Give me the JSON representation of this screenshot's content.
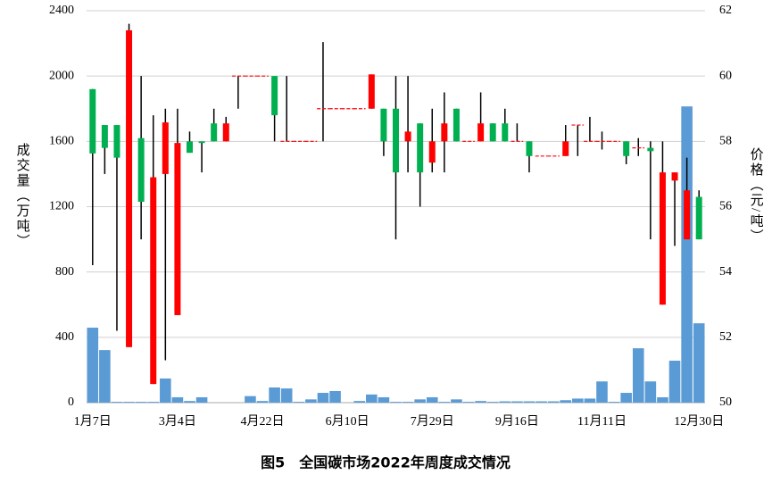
{
  "chart_data": {
    "type": "volume_candlestick",
    "title": "图5　全国碳市场2022年周度成交情况",
    "y_label": "成交量（万吨）",
    "y2_label": "价格（元/吨）",
    "categories": [
      "1月7日",
      null,
      null,
      null,
      null,
      null,
      null,
      "3月4日",
      null,
      null,
      null,
      null,
      null,
      null,
      "4月22日",
      null,
      null,
      null,
      null,
      null,
      null,
      "6月10日",
      null,
      null,
      null,
      null,
      null,
      null,
      "7月29日",
      null,
      null,
      null,
      null,
      null,
      null,
      "9月16日",
      null,
      null,
      null,
      null,
      null,
      null,
      "11月11日",
      null,
      null,
      null,
      null,
      null,
      null,
      null,
      "12月30日"
    ],
    "volume": {
      "color": "#5b9bd5",
      "values": [
        459,
        322,
        5,
        5,
        5,
        5,
        148,
        33,
        10,
        33,
        0,
        0,
        0,
        40,
        10,
        93,
        87,
        5,
        20,
        60,
        71,
        0,
        10,
        50,
        33,
        5,
        5,
        20,
        33,
        5,
        20,
        5,
        10,
        5,
        8,
        8,
        8,
        8,
        8,
        15,
        25,
        25,
        130,
        5,
        60,
        333,
        130,
        33,
        257,
        1814,
        486
      ]
    },
    "price": {
      "axis": "y2",
      "up_color": "#ff0000",
      "down_color": "#00b050",
      "open": [
        59.6,
        58.5,
        58.5,
        51.7,
        58.1,
        50.57,
        57.0,
        52.68,
        58.0,
        58.0,
        58.55,
        58.0,
        60.0,
        60.0,
        60.0,
        60.0,
        58.0,
        58.0,
        58.0,
        59.0,
        59.0,
        59.0,
        59.0,
        59.0,
        59.0,
        59.0,
        58.0,
        58.55,
        57.35,
        58.0,
        59.0,
        58.0,
        58.0,
        58.55,
        58.55,
        58.0,
        58.0,
        57.55,
        57.55,
        57.55,
        58.5,
        58.0,
        58.0,
        58.0,
        58.0,
        57.8,
        57.8,
        53.0,
        56.8,
        55.0,
        56.3
      ],
      "high": [
        59.6,
        58.5,
        58.5,
        61.6,
        60.0,
        58.8,
        59.0,
        59.0,
        58.3,
        58.0,
        59.0,
        58.75,
        60.0,
        60.0,
        60.0,
        60.0,
        60.0,
        58.0,
        58.0,
        61.04,
        59.0,
        59.0,
        59.0,
        60.05,
        59.0,
        60.0,
        60.0,
        58.55,
        59.0,
        59.5,
        59.0,
        58.0,
        59.5,
        58.55,
        59.0,
        58.55,
        58.0,
        57.55,
        57.55,
        58.5,
        58.5,
        58.75,
        58.3,
        58.0,
        58.0,
        58.1,
        58.0,
        58.0,
        57.05,
        57.5,
        56.5
      ],
      "low": [
        54.21,
        57.0,
        52.2,
        51.7,
        55.0,
        50.57,
        51.3,
        52.68,
        57.65,
        57.05,
        58.0,
        58.0,
        59.0,
        60.0,
        60.0,
        58.0,
        58.0,
        58.0,
        58.0,
        58.0,
        59.0,
        59.0,
        59.0,
        59.0,
        57.55,
        55.0,
        57.05,
        56.0,
        57.05,
        57.05,
        58.0,
        58.0,
        58.0,
        58.0,
        58.0,
        58.0,
        57.05,
        57.55,
        57.55,
        57.55,
        57.55,
        58.0,
        57.75,
        58.0,
        57.3,
        57.55,
        55.0,
        53.0,
        54.8,
        55.0,
        55.0
      ],
      "close": [
        57.63,
        57.8,
        57.5,
        61.4,
        56.15,
        56.9,
        58.58,
        57.95,
        57.65,
        57.95,
        58.0,
        58.55,
        60.0,
        60.0,
        60.0,
        58.8,
        58.0,
        58.0,
        58.0,
        59.0,
        59.0,
        59.0,
        59.0,
        60.05,
        58.0,
        57.05,
        58.3,
        57.05,
        58.0,
        58.55,
        58.0,
        58.0,
        58.55,
        58.0,
        58.0,
        58.0,
        57.55,
        57.55,
        57.55,
        58.0,
        58.5,
        58.0,
        58.0,
        58.0,
        57.55,
        57.8,
        57.7,
        57.05,
        57.05,
        56.5,
        55.0
      ]
    },
    "ylim": [
      0,
      2400
    ],
    "yticks": [
      0,
      400,
      800,
      1200,
      1600,
      2000,
      2400
    ],
    "y2lim": [
      50,
      62
    ],
    "y2ticks": [
      50,
      52,
      54,
      56,
      58,
      60,
      62
    ],
    "grid": true
  }
}
